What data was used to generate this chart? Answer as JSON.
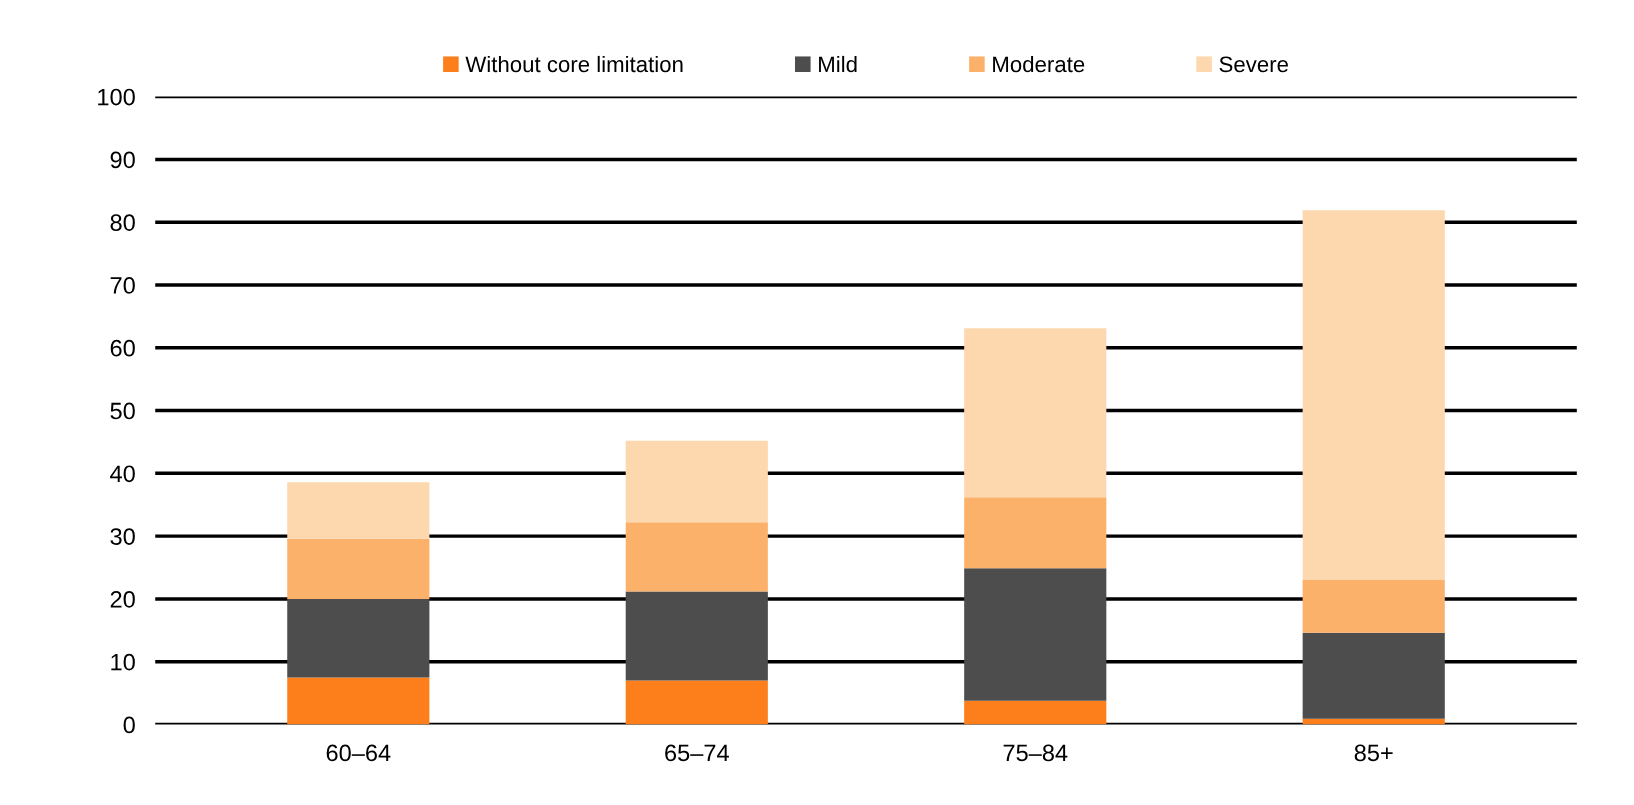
{
  "chart_data": {
    "type": "bar",
    "stacked": true,
    "categories": [
      "60–64",
      "65–74",
      "75–84",
      "85+"
    ],
    "series": [
      {
        "name": "Without core limitation",
        "color": "#fc7f1c",
        "values": [
          7.5,
          7.0,
          3.8,
          0.9
        ]
      },
      {
        "name": "Mild",
        "color": "#4d4d4d",
        "values": [
          12.5,
          14.2,
          21.1,
          13.7
        ]
      },
      {
        "name": "Moderate",
        "color": "#fcb16b",
        "values": [
          9.6,
          11.0,
          11.3,
          8.4
        ]
      },
      {
        "name": "Severe",
        "color": "#fdd7ad",
        "values": [
          9.0,
          13.0,
          26.9,
          58.9
        ]
      }
    ],
    "ylim": [
      0,
      100
    ],
    "yticks": [
      0,
      10,
      20,
      30,
      40,
      50,
      60,
      70,
      80,
      90,
      100
    ],
    "grid": "y",
    "legend": "top"
  }
}
